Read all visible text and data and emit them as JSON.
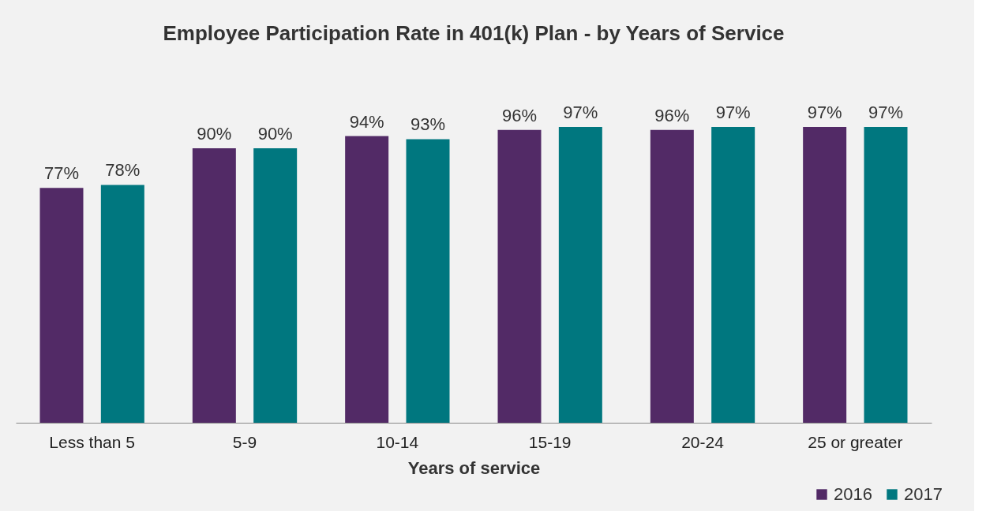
{
  "chart_data": {
    "type": "bar",
    "title": "Employee Participation Rate in 401(k) Plan - by  Years of Service",
    "xlabel": "Years of service",
    "categories": [
      "Less than 5",
      "5-9",
      "10-14",
      "15-19",
      "20-24",
      "25 or greater"
    ],
    "series": [
      {
        "name": "2016",
        "color": "#522a66",
        "values": [
          77,
          90,
          94,
          96,
          96,
          97
        ],
        "value_labels": [
          "77%",
          "90%",
          "94%",
          "96%",
          "96%",
          "97%"
        ]
      },
      {
        "name": "2017",
        "color": "#00777f",
        "values": [
          78,
          90,
          93,
          97,
          97,
          97
        ],
        "value_labels": [
          "78%",
          "90%",
          "93%",
          "97%",
          "97%",
          "97%"
        ]
      }
    ],
    "legend": "bottom right",
    "grid": false
  }
}
